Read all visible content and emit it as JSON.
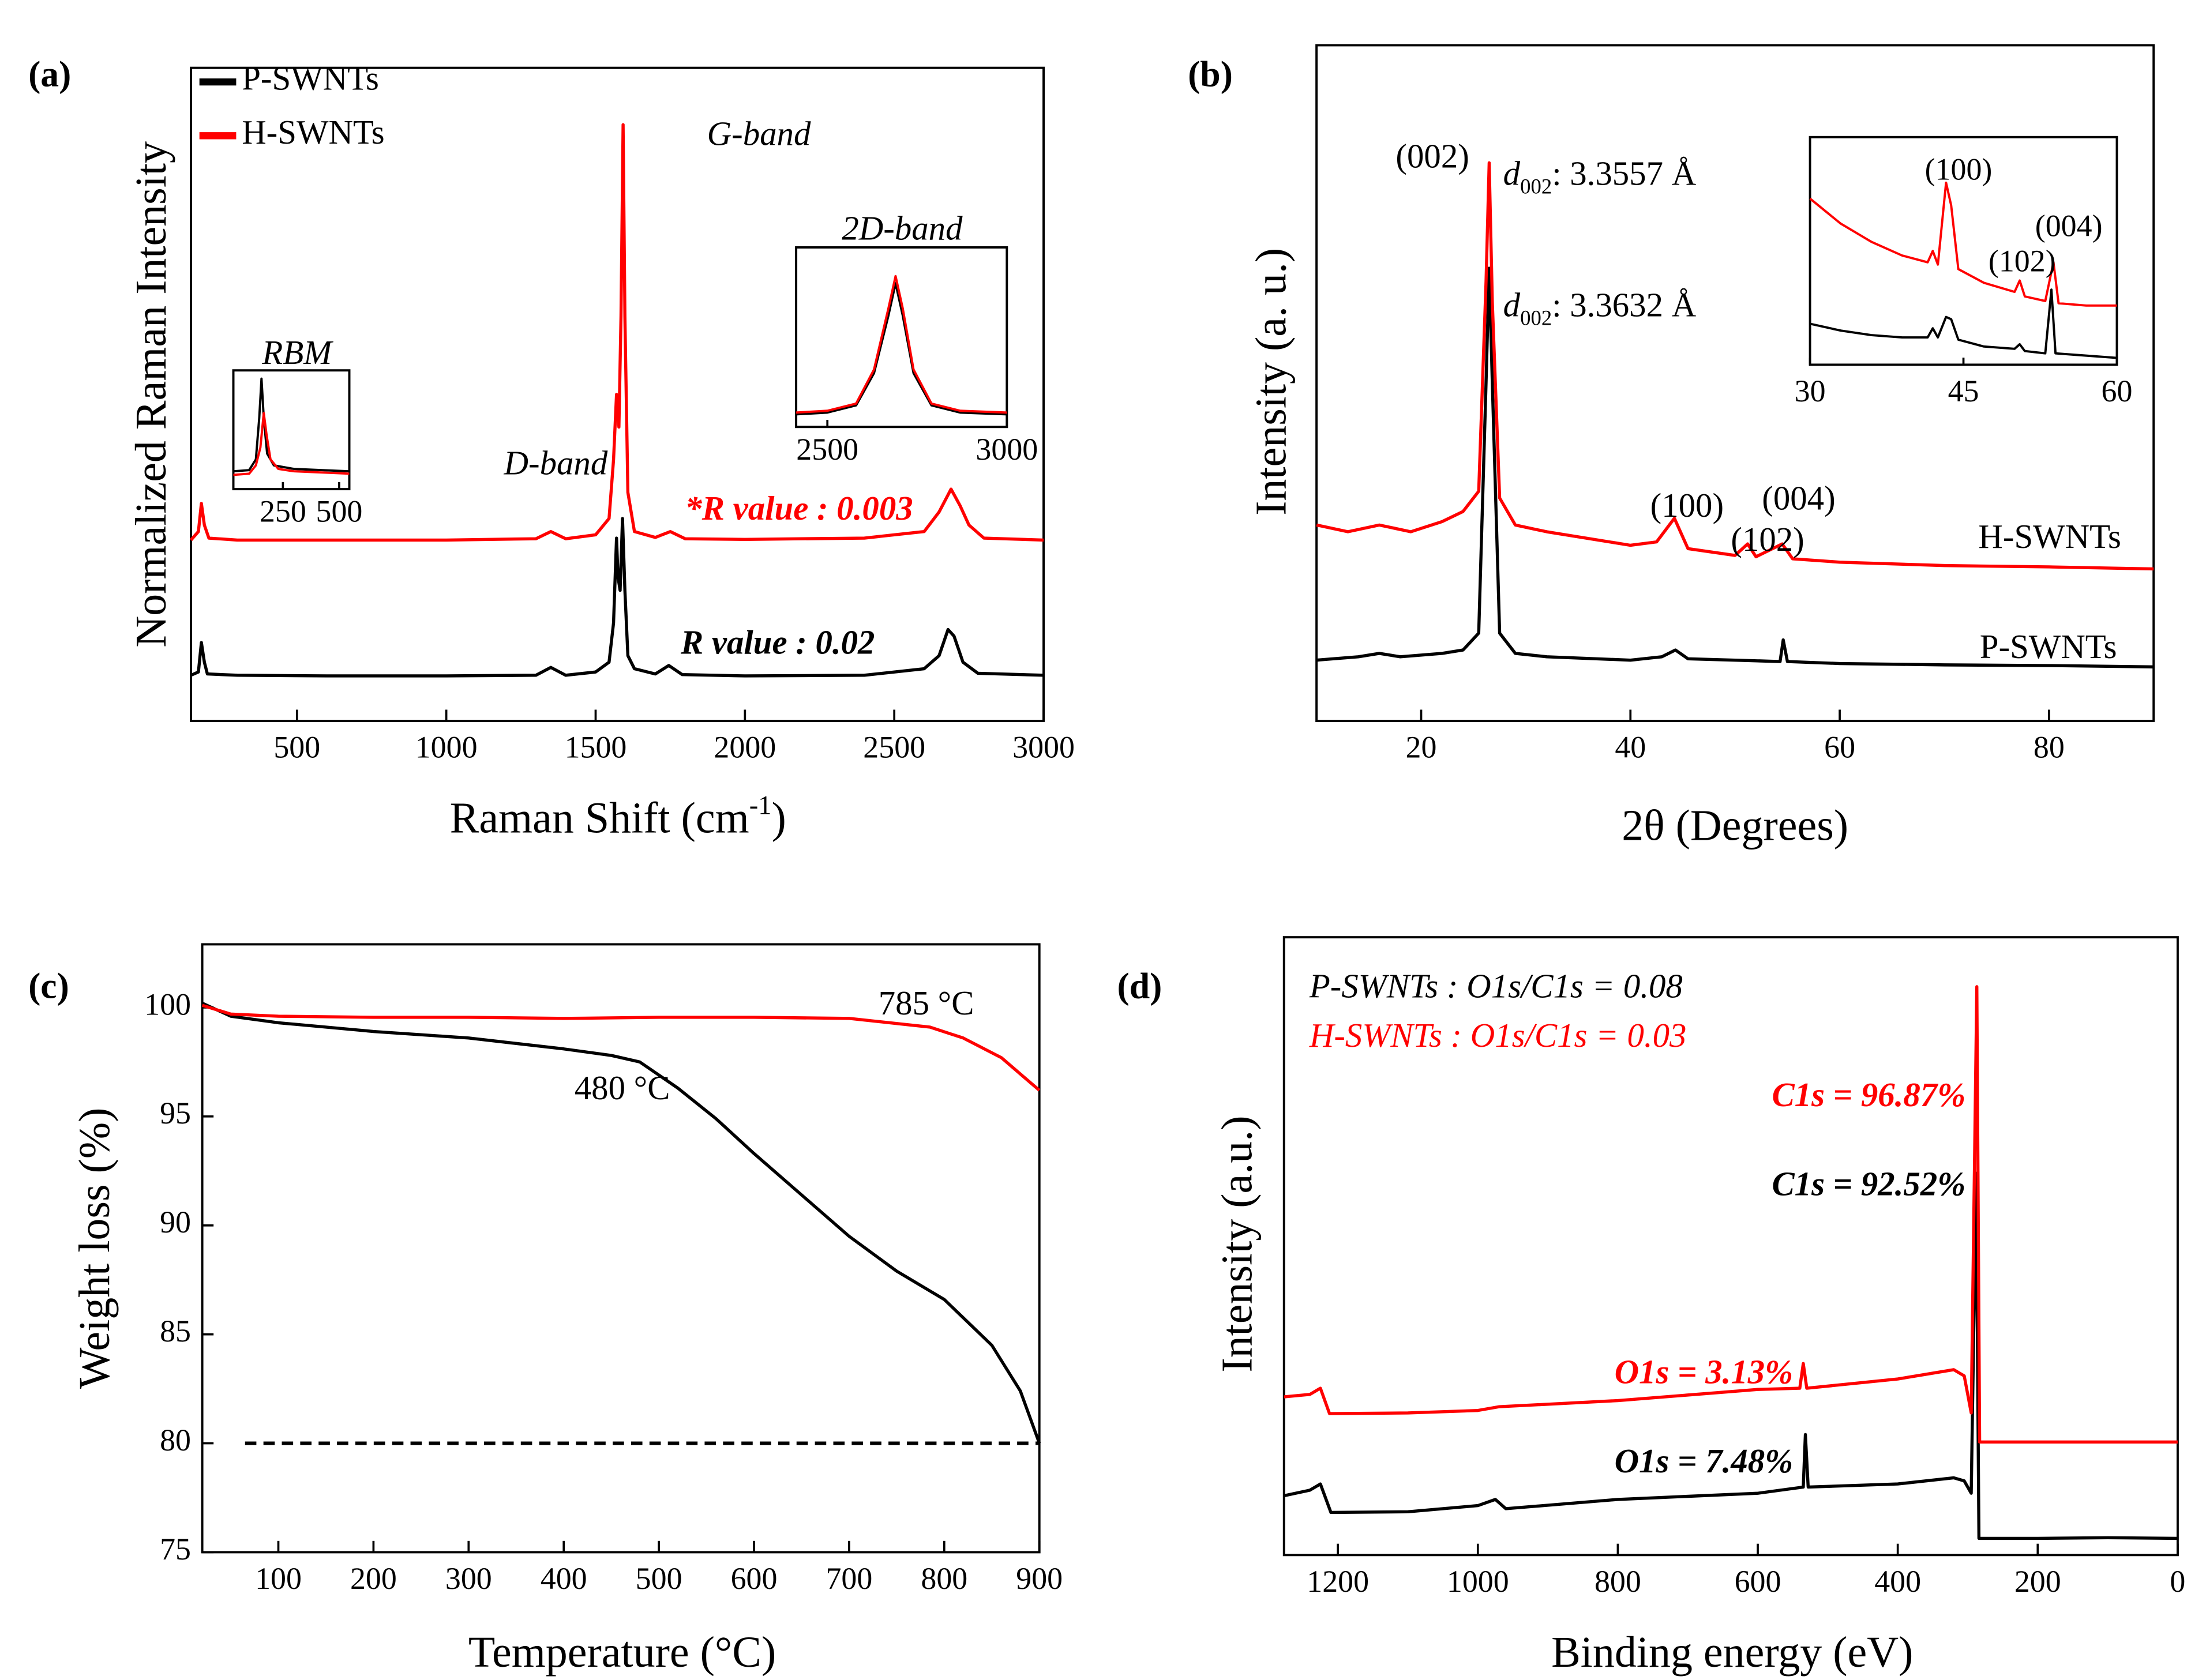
{
  "chart_data": [
    {
      "panel": "(a)",
      "type": "line",
      "xlabel": {
        "text": "Raman Shift (cm",
        "sup": "-1",
        "end": ")"
      },
      "ylabel": "Normalized Raman Intensity",
      "xlim": [
        145,
        3000
      ],
      "xticks": [
        500,
        1000,
        1500,
        2000,
        2500,
        3000
      ],
      "ylim": [
        0,
        1
      ],
      "legend": "upper left",
      "series": [
        {
          "name": "P-SWNTs",
          "color": "#000000",
          "x": [
            145,
            170,
            180,
            190,
            200,
            300,
            600,
            1000,
            1300,
            1350,
            1400,
            1500,
            1545,
            1560,
            1570,
            1575,
            1582,
            1590,
            1598,
            1608,
            1630,
            1700,
            1745,
            1790,
            2000,
            2400,
            2600,
            2650,
            2680,
            2700,
            2730,
            2780,
            3000
          ],
          "values": [
            0.07,
            0.075,
            0.12,
            0.09,
            0.072,
            0.07,
            0.069,
            0.069,
            0.07,
            0.082,
            0.07,
            0.075,
            0.09,
            0.15,
            0.28,
            0.22,
            0.2,
            0.31,
            0.2,
            0.1,
            0.08,
            0.072,
            0.085,
            0.071,
            0.069,
            0.07,
            0.08,
            0.1,
            0.14,
            0.13,
            0.09,
            0.073,
            0.07
          ]
        },
        {
          "name": "H-SWNTs",
          "color": "#ff0000",
          "x": [
            145,
            170,
            180,
            190,
            205,
            300,
            600,
            1000,
            1300,
            1350,
            1400,
            1500,
            1545,
            1560,
            1570,
            1578,
            1585,
            1592,
            1598,
            1608,
            1630,
            1700,
            1750,
            1800,
            2000,
            2400,
            2600,
            2650,
            2690,
            2720,
            2750,
            2800,
            3000
          ],
          "values": [
            0.277,
            0.29,
            0.333,
            0.3,
            0.28,
            0.277,
            0.277,
            0.277,
            0.279,
            0.29,
            0.279,
            0.285,
            0.31,
            0.4,
            0.5,
            0.45,
            0.62,
            0.913,
            0.62,
            0.35,
            0.29,
            0.281,
            0.29,
            0.279,
            0.278,
            0.28,
            0.29,
            0.32,
            0.355,
            0.33,
            0.3,
            0.28,
            0.277
          ]
        }
      ],
      "annotations": [
        "G-band",
        "D-band",
        "*R value : 0.003",
        "R value : 0.02"
      ],
      "insets": [
        {
          "title": "RBM",
          "xlim": [
            30,
            545
          ],
          "xticks": [
            250,
            500
          ],
          "ylim": [
            0,
            1
          ],
          "series": [
            {
              "color": "#000000",
              "x": [
                30,
                100,
                130,
                145,
                155,
                165,
                180,
                210,
                300,
                545
              ],
              "values": [
                0.15,
                0.16,
                0.25,
                0.6,
                0.93,
                0.6,
                0.3,
                0.2,
                0.17,
                0.15
              ]
            },
            {
              "color": "#ff0000",
              "x": [
                30,
                100,
                130,
                150,
                165,
                178,
                195,
                230,
                300,
                545
              ],
              "values": [
                0.12,
                0.13,
                0.2,
                0.35,
                0.64,
                0.45,
                0.25,
                0.17,
                0.15,
                0.13
              ]
            }
          ]
        },
        {
          "title": "2D-band",
          "xlim": [
            2413,
            3000
          ],
          "xticks": [
            2500,
            3000
          ],
          "ylim": [
            0,
            1
          ],
          "series": [
            {
              "color": "#000000",
              "x": [
                2413,
                2500,
                2580,
                2630,
                2670,
                2690,
                2710,
                2740,
                2790,
                2870,
                3000
              ],
              "values": [
                0.07,
                0.08,
                0.12,
                0.3,
                0.62,
                0.8,
                0.62,
                0.3,
                0.12,
                0.08,
                0.07
              ]
            },
            {
              "color": "#ff0000",
              "x": [
                2413,
                2500,
                2580,
                2630,
                2670,
                2690,
                2710,
                2740,
                2790,
                2870,
                3000
              ],
              "values": [
                0.08,
                0.09,
                0.13,
                0.32,
                0.66,
                0.84,
                0.66,
                0.32,
                0.13,
                0.09,
                0.08
              ]
            }
          ]
        }
      ]
    },
    {
      "panel": "(b)",
      "type": "line",
      "xlabel": "2θ (Degrees)",
      "ylabel": "Intensity  (a. u.)",
      "xlim": [
        10,
        90
      ],
      "xticks": [
        20,
        40,
        60,
        80
      ],
      "ylim": [
        0,
        1
      ],
      "series": [
        {
          "name": "P-SWNTs",
          "color": "#000000",
          "x": [
            10,
            14,
            16,
            18,
            22,
            24,
            25.5,
            26.2,
            26.5,
            26.8,
            27.5,
            29,
            32,
            40,
            43,
            44.3,
            45.5,
            50,
            54.3,
            54.6,
            55,
            60,
            70,
            80,
            90
          ],
          "values": [
            0.09,
            0.095,
            0.1,
            0.095,
            0.1,
            0.105,
            0.13,
            0.5,
            0.67,
            0.5,
            0.13,
            0.1,
            0.095,
            0.09,
            0.095,
            0.105,
            0.092,
            0.09,
            0.088,
            0.12,
            0.088,
            0.085,
            0.083,
            0.082,
            0.08
          ]
        },
        {
          "name": "H-SWNTs",
          "color": "#ff0000",
          "x": [
            10,
            13,
            16,
            19,
            22,
            24,
            25.5,
            26.2,
            26.5,
            26.8,
            27.5,
            29,
            32,
            40,
            42.5,
            44.2,
            45.5,
            50,
            51.2,
            52,
            54.5,
            55.5,
            60,
            70,
            80,
            90
          ],
          "values": [
            0.29,
            0.28,
            0.29,
            0.28,
            0.295,
            0.31,
            0.34,
            0.65,
            0.826,
            0.62,
            0.33,
            0.29,
            0.28,
            0.26,
            0.265,
            0.3,
            0.255,
            0.245,
            0.262,
            0.243,
            0.262,
            0.24,
            0.235,
            0.23,
            0.228,
            0.225
          ]
        }
      ],
      "annotations": [
        "(002)",
        {
          "symbol": "d",
          "subscript": "002",
          "text": ": 3.3557 Å"
        },
        {
          "symbol": "d",
          "subscript": "002",
          "text": ": 3.3632 Å"
        },
        "(100)",
        "(102)",
        "(004)"
      ],
      "insets": [
        {
          "xlim": [
            30,
            60
          ],
          "xticks": [
            30,
            45,
            60
          ],
          "ylim": [
            0,
            1
          ],
          "annotations": [
            "(100)",
            "(102)",
            "(004)"
          ],
          "series": [
            {
              "color": "#000000",
              "x": [
                30,
                33,
                36,
                39,
                41.5,
                42,
                42.5,
                43.3,
                43.8,
                44.5,
                47,
                50,
                50.5,
                51,
                53,
                53.6,
                54,
                57,
                60
              ],
              "values": [
                0.18,
                0.15,
                0.13,
                0.12,
                0.12,
                0.16,
                0.12,
                0.21,
                0.2,
                0.11,
                0.08,
                0.07,
                0.09,
                0.06,
                0.05,
                0.33,
                0.05,
                0.04,
                0.03
              ]
            },
            {
              "color": "#ff0000",
              "x": [
                30,
                33,
                36,
                39,
                41.5,
                42,
                42.5,
                43.3,
                43.8,
                44.5,
                47,
                50,
                50.5,
                51,
                53,
                53.8,
                54.3,
                57,
                60
              ],
              "values": [
                0.73,
                0.62,
                0.54,
                0.48,
                0.45,
                0.5,
                0.44,
                0.8,
                0.7,
                0.42,
                0.36,
                0.32,
                0.37,
                0.3,
                0.28,
                0.45,
                0.27,
                0.26,
                0.26
              ]
            }
          ]
        }
      ]
    },
    {
      "panel": "(c)",
      "type": "line",
      "xlabel": "Temperature (°C)",
      "ylabel": "Weight loss (%)",
      "xlim": [
        20,
        900
      ],
      "xticks": [
        100,
        200,
        300,
        400,
        500,
        600,
        700,
        800,
        900
      ],
      "ylim": [
        75,
        102.9
      ],
      "yticks": [
        75,
        80,
        85,
        90,
        95,
        100
      ],
      "reference_line": {
        "y": 80,
        "x": [
          65,
          900
        ]
      },
      "series": [
        {
          "color": "#000000",
          "x": [
            20,
            50,
            100,
            200,
            300,
            400,
            450,
            480,
            520,
            560,
            600,
            650,
            700,
            750,
            800,
            850,
            880,
            900
          ],
          "values": [
            100.2,
            99.6,
            99.3,
            98.9,
            98.6,
            98.1,
            97.8,
            97.5,
            96.3,
            94.9,
            93.3,
            91.4,
            89.5,
            87.9,
            86.6,
            84.5,
            82.4,
            80
          ]
        },
        {
          "color": "#ff0000",
          "x": [
            20,
            50,
            100,
            200,
            300,
            400,
            500,
            600,
            700,
            785,
            820,
            860,
            900
          ],
          "values": [
            100.1,
            99.7,
            99.6,
            99.55,
            99.55,
            99.5,
            99.55,
            99.55,
            99.5,
            99.1,
            98.6,
            97.7,
            96.2
          ]
        }
      ],
      "annotations": [
        "480 °C",
        "785 °C"
      ]
    },
    {
      "panel": "(d)",
      "type": "line",
      "xlabel": "Binding energy (eV)",
      "ylabel": "Intensity (a.u.)",
      "xlim": [
        1277,
        0
      ],
      "xticks": [
        1200,
        1000,
        800,
        600,
        400,
        200,
        0
      ],
      "ylim": [
        0,
        1
      ],
      "series": [
        {
          "color": "#000000",
          "x": [
            1277,
            1240,
            1225,
            1210,
            1100,
            1000,
            975,
            960,
            800,
            600,
            535,
            532,
            528,
            400,
            320,
            305,
            295,
            288,
            284,
            200,
            100,
            0
          ],
          "values": [
            0.096,
            0.105,
            0.115,
            0.069,
            0.07,
            0.08,
            0.09,
            0.075,
            0.09,
            0.1,
            0.11,
            0.195,
            0.11,
            0.115,
            0.125,
            0.12,
            0.1,
            0.618,
            0.027,
            0.027,
            0.028,
            0.027
          ]
        },
        {
          "color": "#ff0000",
          "x": [
            1277,
            1240,
            1225,
            1212,
            1100,
            1000,
            970,
            800,
            600,
            540,
            535,
            530,
            400,
            320,
            305,
            295,
            287,
            283,
            200,
            0
          ],
          "values": [
            0.256,
            0.26,
            0.27,
            0.229,
            0.23,
            0.234,
            0.24,
            0.25,
            0.268,
            0.27,
            0.31,
            0.27,
            0.285,
            0.3,
            0.29,
            0.23,
            0.92,
            0.183,
            0.183,
            0.183
          ]
        }
      ],
      "annotations": [
        "P-SWNTs : O1s/C1s = 0.08",
        "H-SWNTs : O1s/C1s = 0.03",
        "C1s = 96.87%",
        "C1s = 92.52%",
        "O1s = 3.13%",
        "O1s = 7.48%"
      ]
    }
  ]
}
